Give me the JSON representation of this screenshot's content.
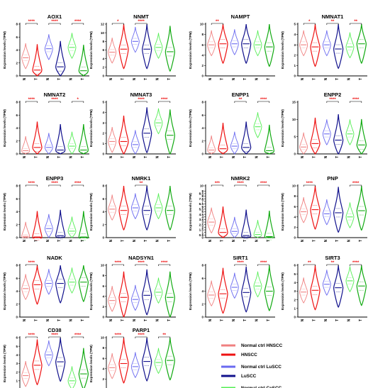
{
  "colors": {
    "normal_hnscc": "#f08080",
    "hnscc": "#ee1111",
    "normal_luscc": "#6a6af0",
    "luscc": "#10108c",
    "normal_cescc": "#55ee55",
    "cescc": "#11aa11",
    "sig_red": "#ee1111",
    "axis": "#000000"
  },
  "legend": [
    {
      "label": "Normal  ctrl HNSCC",
      "color_key": "normal_hnscc"
    },
    {
      "label": "HNSCC",
      "color_key": "hnscc"
    },
    {
      "label": "Normal  ctrl  LuSCC",
      "color_key": "normal_luscc"
    },
    {
      "label": "LuSCC",
      "color_key": "luscc"
    },
    {
      "label": "Normal  ctrl CeSCC",
      "color_key": "normal_cescc"
    },
    {
      "label": "CeSCC",
      "color_key": "cescc"
    }
  ],
  "chart_data": [
    {
      "type": "violin",
      "title": "AOX1",
      "ylabel": "Expression levels (TPM)",
      "ylim": [
        0,
        8
      ],
      "yticks": [
        0,
        2,
        4,
        6,
        8
      ],
      "xticks": [
        "N",
        "T",
        "N",
        "T",
        "N",
        "T"
      ],
      "significance": [
        "****",
        "****",
        "****"
      ],
      "medians": [
        2.8,
        0.9,
        4.2,
        1.4,
        4.4,
        0.8
      ]
    },
    {
      "type": "violin",
      "title": "NNMT",
      "ylabel": "Expression levels (TPM)",
      "ylim": [
        0,
        12
      ],
      "yticks": [
        0,
        2,
        4,
        6,
        8,
        10,
        12
      ],
      "xticks": [
        "N",
        "T",
        "N",
        "T",
        "N",
        "T"
      ],
      "significance": [
        "*",
        "****",
        ""
      ],
      "medians": [
        5.5,
        6.2,
        8.0,
        6.2,
        6.6,
        5.6
      ]
    },
    {
      "type": "violin",
      "title": "NAMPT",
      "ylabel": "Expression levels (TPM)",
      "ylim": [
        0,
        10
      ],
      "yticks": [
        0,
        2,
        4,
        6,
        8,
        10
      ],
      "xticks": [
        "N",
        "T",
        "N",
        "T",
        "N",
        "T"
      ],
      "significance": [
        "**",
        "",
        ""
      ],
      "medians": [
        6.0,
        6.2,
        6.2,
        6.2,
        6.0,
        5.6
      ]
    },
    {
      "type": "violin",
      "title": "NMNAT1",
      "ylabel": "Expression levels (TPM)",
      "ylim": [
        0,
        5
      ],
      "yticks": [
        0,
        1,
        2,
        3,
        4,
        5
      ],
      "xticks": [
        "N",
        "T",
        "N",
        "T",
        "N",
        "T"
      ],
      "significance": [
        "*",
        "**",
        "**"
      ],
      "medians": [
        3.0,
        2.8,
        3.0,
        2.6,
        2.8,
        3.1
      ]
    },
    {
      "type": "violin",
      "title": "NMNAT2",
      "ylabel": "Expression levels (TPM)",
      "ylim": [
        0,
        8
      ],
      "yticks": [
        0,
        2,
        4,
        6,
        8
      ],
      "xticks": [
        "N",
        "T",
        "N",
        "T",
        "N",
        "T"
      ],
      "significance": [
        "****",
        "****",
        "*"
      ],
      "medians": [
        0.5,
        1.0,
        1.0,
        0.6,
        1.2,
        0.6
      ]
    },
    {
      "type": "violin",
      "title": "NMNAT3",
      "ylabel": "Expression levels (TPM)",
      "ylim": [
        0,
        5
      ],
      "yticks": [
        0,
        1,
        2,
        3,
        4,
        5
      ],
      "xticks": [
        "N",
        "T",
        "N",
        "T",
        "N",
        "T"
      ],
      "significance": [
        "",
        "****",
        "****"
      ],
      "medians": [
        1.2,
        1.2,
        0.9,
        2.0,
        3.0,
        1.8
      ]
    },
    {
      "type": "violin",
      "title": "ENPP1",
      "ylabel": "Expression levels (TPM)",
      "ylim": [
        0,
        8
      ],
      "yticks": [
        0,
        2,
        4,
        6,
        8
      ],
      "xticks": [
        "N",
        "T",
        "N",
        "T",
        "N",
        "T"
      ],
      "significance": [
        "",
        "**",
        "****"
      ],
      "medians": [
        0.6,
        0.8,
        1.2,
        1.0,
        4.2,
        0.5
      ]
    },
    {
      "type": "violin",
      "title": "ENPP2",
      "ylabel": "Expression levels (TPM)",
      "ylim": [
        0,
        15
      ],
      "yticks": [
        0,
        5,
        10,
        15
      ],
      "xticks": [
        "N",
        "T",
        "N",
        "T",
        "N",
        "T"
      ],
      "significance": [
        "",
        "****",
        "****"
      ],
      "medians": [
        2.0,
        3.0,
        5.8,
        4.0,
        5.8,
        2.6
      ]
    },
    {
      "type": "violin",
      "title": "ENPP3",
      "ylabel": "Expression levels (TPM)",
      "ylim": [
        0,
        8
      ],
      "yticks": [
        0,
        2,
        4,
        6,
        8
      ],
      "xticks": [
        "N",
        "T",
        "N",
        "T",
        "N",
        "T"
      ],
      "significance": [
        "****",
        "****",
        "****"
      ],
      "medians": [
        0.2,
        0.1,
        1.4,
        0.3,
        1.0,
        0.1
      ]
    },
    {
      "type": "violin",
      "title": "NMRK1",
      "ylabel": "Expression levels (TPM)",
      "ylim": [
        0,
        8
      ],
      "yticks": [
        0,
        2,
        4,
        6,
        8
      ],
      "xticks": [
        "N",
        "T",
        "N",
        "T",
        "N",
        "T"
      ],
      "significance": [
        "",
        "**",
        ""
      ],
      "medians": [
        4.4,
        4.2,
        4.6,
        4.2,
        4.6,
        4.2
      ]
    },
    {
      "type": "violin",
      "title": "NMRK2",
      "ylabel": "Expression levels (TPM)",
      "ylim": [
        0,
        10
      ],
      "yticks": [
        0.0,
        0.5,
        1.0,
        1.5,
        2.0,
        2.5,
        3.0,
        3.5,
        4.0,
        4.5,
        5.0,
        5.5,
        6.0,
        6.5,
        7.0,
        7.5,
        8.0,
        8.5,
        9.0,
        10.0
      ],
      "xticks": [
        "N",
        "T",
        "N",
        "T",
        "N",
        "T"
      ],
      "significance": [
        "***",
        "****",
        "****"
      ],
      "medians": [
        3.0,
        1.0,
        1.2,
        0.4,
        0.6,
        0.2
      ]
    },
    {
      "type": "violin",
      "title": "PNP",
      "ylabel": "Expression levels (TPM)",
      "ylim": [
        0,
        10
      ],
      "yticks": [
        0,
        2,
        4,
        6,
        8,
        10
      ],
      "xticks": [
        "N",
        "T",
        "N",
        "T",
        "N",
        "T"
      ],
      "significance": [
        "****",
        "",
        "****"
      ],
      "medians": [
        5.0,
        5.4,
        4.6,
        4.8,
        4.0,
        5.2
      ]
    },
    {
      "type": "violin",
      "title": "NADK",
      "ylabel": "Expression levels (TPM)",
      "ylim": [
        0,
        8
      ],
      "yticks": [
        0,
        2,
        4,
        6,
        8
      ],
      "xticks": [
        "N",
        "T",
        "N",
        "T",
        "N",
        "T"
      ],
      "significance": [
        "****",
        "",
        ""
      ],
      "medians": [
        4.4,
        5.0,
        5.2,
        5.2,
        5.4,
        5.4
      ]
    },
    {
      "type": "violin",
      "title": "NADSYN1",
      "ylabel": "Expression levels (TPM)",
      "ylim": [
        0,
        10
      ],
      "yticks": [
        0,
        2,
        4,
        6,
        8,
        10
      ],
      "xticks": [
        "N",
        "T",
        "N",
        "T",
        "N",
        "T"
      ],
      "significance": [
        "****",
        "****",
        "****"
      ],
      "medians": [
        3.2,
        3.8,
        3.4,
        4.2,
        4.8,
        3.8
      ]
    },
    {
      "type": "violin",
      "title": "SIRT1",
      "ylabel": "Expression levels (TPM)",
      "ylim": [
        0,
        8
      ],
      "yticks": [
        0,
        2,
        4,
        6,
        8
      ],
      "xticks": [
        "N",
        "T",
        "N",
        "T",
        "N",
        "T"
      ],
      "significance": [
        "",
        "****",
        "****"
      ],
      "medians": [
        3.4,
        3.6,
        4.6,
        3.8,
        4.8,
        4.0
      ]
    },
    {
      "type": "violin",
      "title": "SIRT3",
      "ylabel": "Expression levels (TPM)",
      "ylim": [
        0,
        6
      ],
      "yticks": [
        0,
        1,
        2,
        3,
        4,
        5,
        6
      ],
      "xticks": [
        "N",
        "T",
        "N",
        "T",
        "N",
        "T"
      ],
      "significance": [
        "**",
        "**",
        "****"
      ],
      "medians": [
        2.9,
        3.1,
        3.8,
        3.4,
        4.2,
        3.6
      ]
    },
    {
      "type": "violin",
      "title": "CD38",
      "ylabel": "Expression levels (TPM)",
      "ylim": [
        0,
        6
      ],
      "yticks": [
        0,
        1,
        2,
        3,
        4,
        5,
        6
      ],
      "xticks": [
        "N",
        "T",
        "N",
        "T",
        "N",
        "T"
      ],
      "significance": [
        "****",
        "****",
        "****"
      ],
      "medians": [
        1.6,
        2.8,
        4.0,
        3.2,
        1.0,
        1.8
      ]
    },
    {
      "type": "violin",
      "title": "PARP1",
      "ylabel": "Expression levels (TPM)",
      "ylim": [
        0,
        10
      ],
      "yticks": [
        0,
        2,
        4,
        6,
        8,
        10
      ],
      "xticks": [
        "N",
        "T",
        "N",
        "T",
        "N",
        "T"
      ],
      "significance": [
        "****",
        "****",
        "**"
      ],
      "medians": [
        4.2,
        5.0,
        4.4,
        5.4,
        5.2,
        5.6
      ]
    }
  ]
}
